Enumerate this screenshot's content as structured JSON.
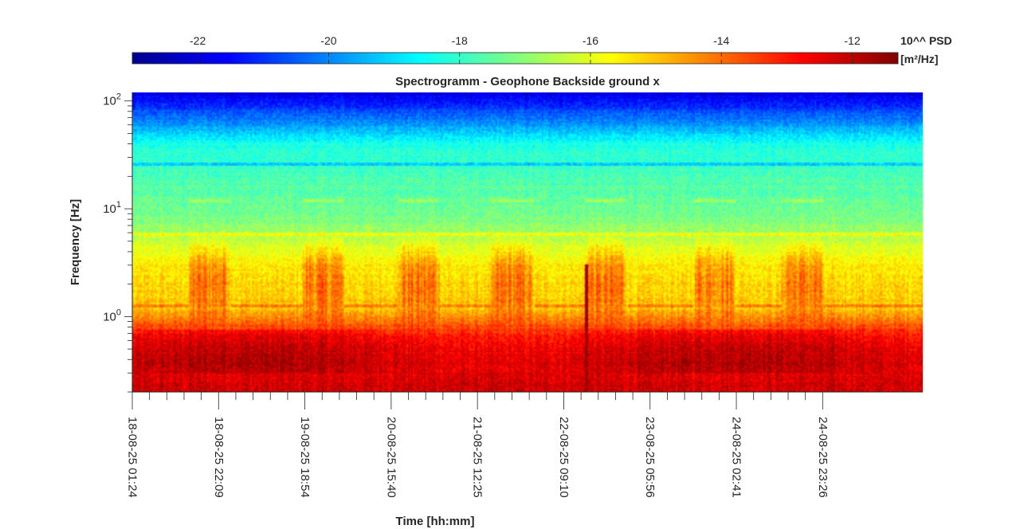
{
  "chart_data": {
    "type": "heatmap",
    "title": "Spectrogramm - Geophone Backside ground x",
    "xlabel": "Time [hh:mm]",
    "ylabel": "Frequency [Hz]",
    "yscale": "log",
    "ylim": [
      0.2,
      120
    ],
    "y_ticks": [
      {
        "value": 100,
        "base": "10",
        "exp": "2"
      },
      {
        "value": 10,
        "base": "10",
        "exp": "1"
      },
      {
        "value": 1,
        "base": "10",
        "exp": "0"
      }
    ],
    "x_range_days": [
      0,
      7.92
    ],
    "x_ticks": [
      {
        "day": 0.0,
        "label": "18-08-25 01:24"
      },
      {
        "day": 0.8646,
        "label": "18-08-25 22:09"
      },
      {
        "day": 1.7292,
        "label": "19-08-25 18:54"
      },
      {
        "day": 2.5938,
        "label": "20-08-25 15:40"
      },
      {
        "day": 3.4583,
        "label": "21-08-25 12:25"
      },
      {
        "day": 4.3229,
        "label": "22-08-25 09:10"
      },
      {
        "day": 5.1875,
        "label": "23-08-25 05:56"
      },
      {
        "day": 6.0521,
        "label": "24-08-25 02:41"
      },
      {
        "day": 6.9167,
        "label": "24-08-25 23:26"
      }
    ],
    "colorbar": {
      "title_line1": "10^^ PSD",
      "title_line2": "[m²/Hz]",
      "range": [
        -23,
        -11.3
      ],
      "ticks": [
        {
          "value": -22,
          "label": "-22"
        },
        {
          "value": -20,
          "label": "-20"
        },
        {
          "value": -18,
          "label": "-18"
        },
        {
          "value": -16,
          "label": "-16"
        },
        {
          "value": -14,
          "label": "-14"
        },
        {
          "value": -12,
          "label": "-12"
        }
      ]
    },
    "features": {
      "microseism_band_hz": [
        0.25,
        0.8
      ],
      "microseism_log_psd": -12.9,
      "line_6hz_log_psd": -16.2,
      "line_12hz_log_psd": -16.8,
      "high_freq_log_psd": -21.8,
      "event_day": 4.55,
      "daytime_activity_start_days": [
        0.55,
        1.69,
        2.65,
        3.58,
        4.52,
        5.61,
        6.49
      ]
    }
  }
}
